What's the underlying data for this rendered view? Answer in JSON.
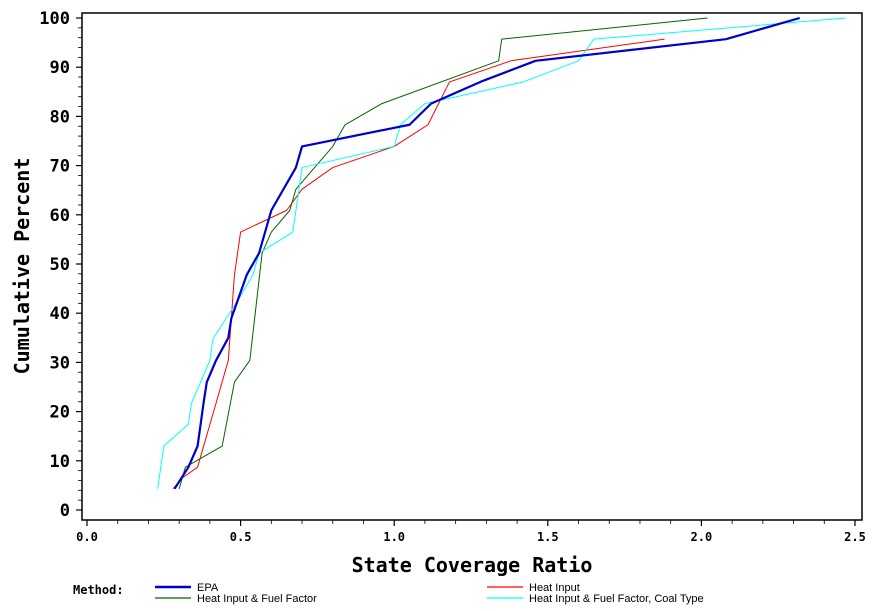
{
  "chart_data": {
    "type": "line",
    "title": "",
    "xlabel": "State Coverage Ratio",
    "ylabel": "Cumulative Percent",
    "xlim": [
      0.0,
      2.5
    ],
    "ylim": [
      0,
      100
    ],
    "x_ticks": [
      "0.0",
      "0.5",
      "1.0",
      "1.5",
      "2.0",
      "2.5"
    ],
    "y_ticks": [
      "0",
      "10",
      "20",
      "30",
      "40",
      "50",
      "60",
      "70",
      "80",
      "90",
      "100"
    ],
    "grid": false,
    "legend_title": "Method:",
    "legend_position": "bottom",
    "series": [
      {
        "name": "EPA",
        "color": "#0000cc",
        "width": 2.2,
        "points": [
          [
            0.285,
            4.3
          ],
          [
            0.33,
            8.7
          ],
          [
            0.36,
            13
          ],
          [
            0.38,
            22
          ],
          [
            0.39,
            26
          ],
          [
            0.42,
            30.4
          ],
          [
            0.46,
            35
          ],
          [
            0.47,
            39
          ],
          [
            0.52,
            47.8
          ],
          [
            0.56,
            52.2
          ],
          [
            0.6,
            60.9
          ],
          [
            0.68,
            69.6
          ],
          [
            0.7,
            73.9
          ],
          [
            1.05,
            78.3
          ],
          [
            1.12,
            82.6
          ],
          [
            1.28,
            87
          ],
          [
            1.46,
            91.3
          ],
          [
            2.08,
            95.7
          ],
          [
            2.32,
            100
          ]
        ]
      },
      {
        "name": "Heat Input",
        "color": "#ff0000",
        "width": 1,
        "points": [
          [
            0.28,
            4.3
          ],
          [
            0.31,
            6.5
          ],
          [
            0.36,
            8.7
          ],
          [
            0.4,
            17.4
          ],
          [
            0.42,
            21.7
          ],
          [
            0.46,
            30.4
          ],
          [
            0.48,
            47.8
          ],
          [
            0.5,
            56.5
          ],
          [
            0.65,
            60.9
          ],
          [
            0.7,
            65.2
          ],
          [
            0.8,
            69.6
          ],
          [
            1.0,
            73.9
          ],
          [
            1.11,
            78.3
          ],
          [
            1.18,
            87
          ],
          [
            1.38,
            91.3
          ],
          [
            1.88,
            95.7
          ]
        ]
      },
      {
        "name": "Heat Input & Fuel Factor",
        "color": "#006600",
        "width": 1,
        "points": [
          [
            0.3,
            4.3
          ],
          [
            0.32,
            8.7
          ],
          [
            0.44,
            13
          ],
          [
            0.48,
            26
          ],
          [
            0.53,
            30.4
          ],
          [
            0.57,
            52.2
          ],
          [
            0.6,
            56.5
          ],
          [
            0.66,
            60.9
          ],
          [
            0.68,
            65.2
          ],
          [
            0.8,
            73.9
          ],
          [
            0.84,
            78.3
          ],
          [
            0.96,
            82.6
          ],
          [
            1.34,
            91.3
          ],
          [
            1.35,
            95.7
          ],
          [
            2.02,
            100
          ]
        ]
      },
      {
        "name": "Heat Input & Fuel Factor, Coal Type",
        "color": "#00ffff",
        "width": 1,
        "points": [
          [
            0.23,
            4.3
          ],
          [
            0.25,
            13
          ],
          [
            0.33,
            17.4
          ],
          [
            0.34,
            21.7
          ],
          [
            0.4,
            30.4
          ],
          [
            0.41,
            34.8
          ],
          [
            0.5,
            43.5
          ],
          [
            0.54,
            47.8
          ],
          [
            0.56,
            52.2
          ],
          [
            0.67,
            56.5
          ],
          [
            0.7,
            69.6
          ],
          [
            1.0,
            73.9
          ],
          [
            1.02,
            78.3
          ],
          [
            1.1,
            82.6
          ],
          [
            1.42,
            87
          ],
          [
            1.6,
            91.3
          ],
          [
            1.65,
            95.7
          ],
          [
            2.47,
            100
          ]
        ]
      }
    ]
  }
}
